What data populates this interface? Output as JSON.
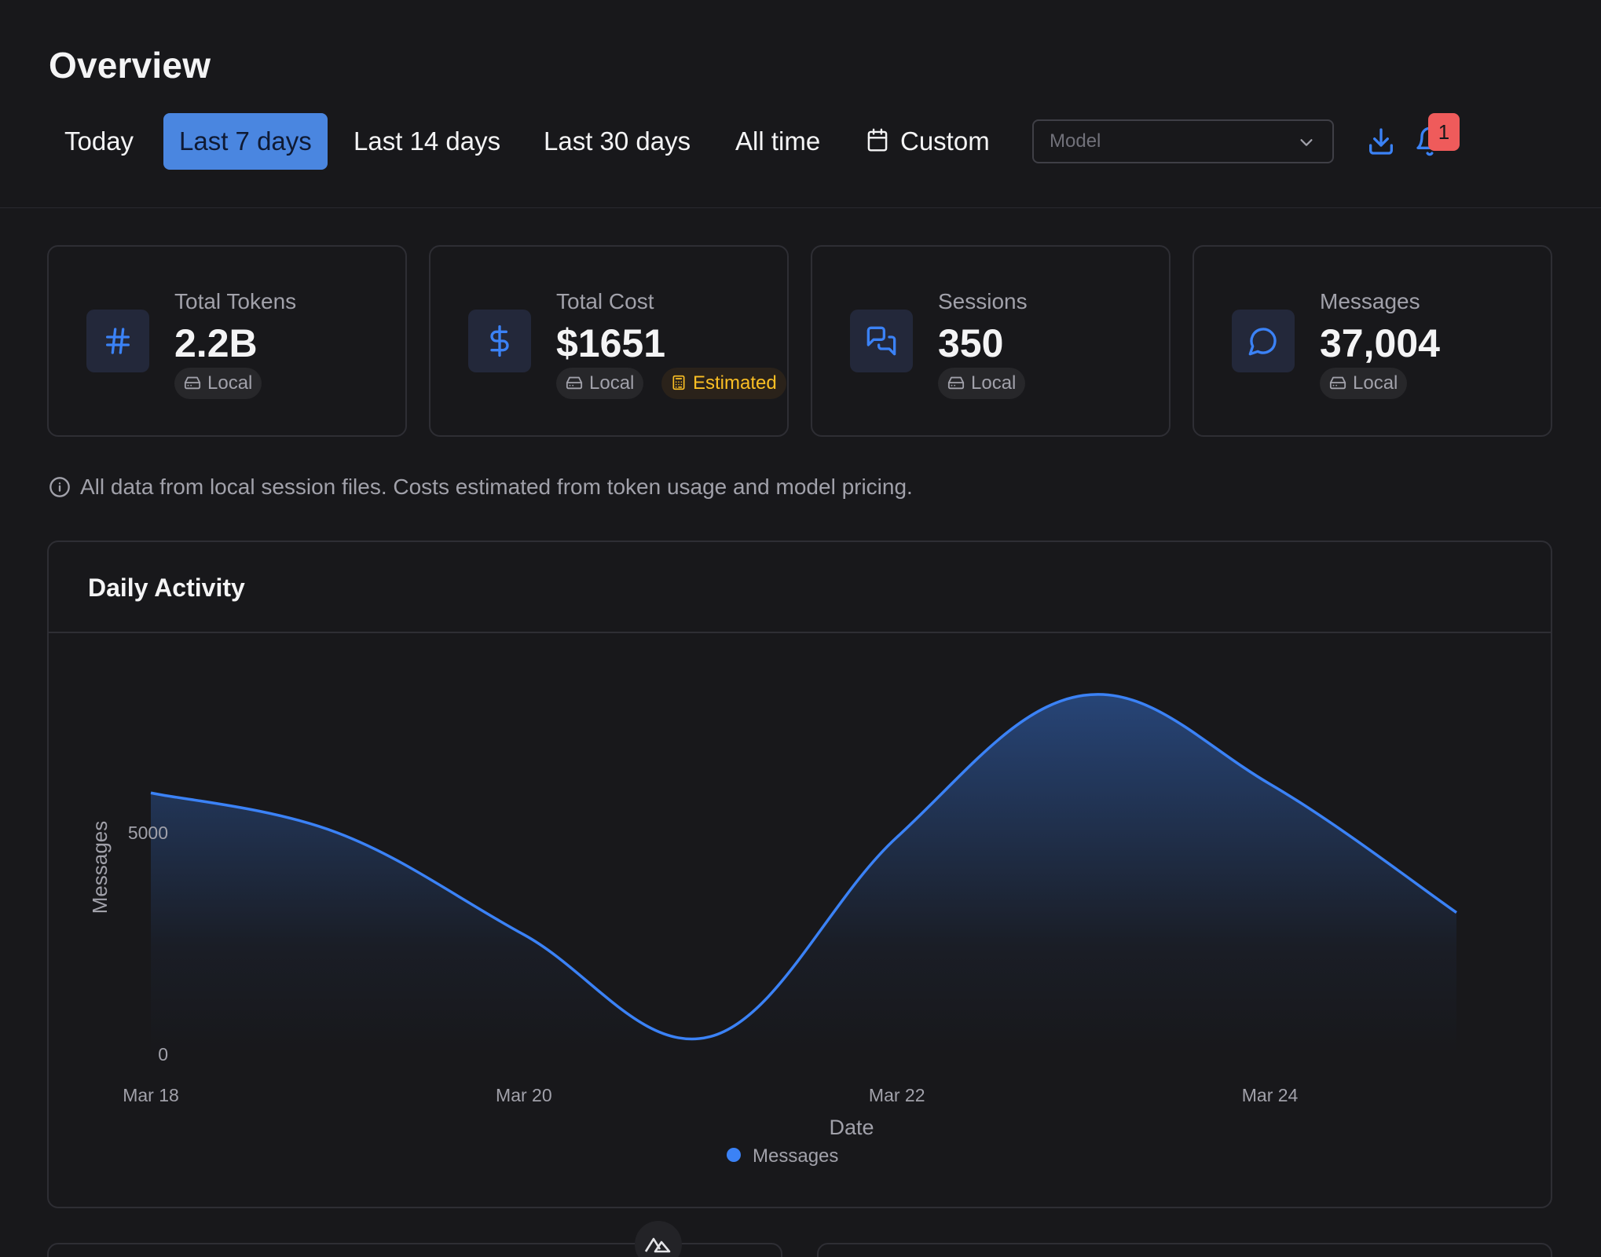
{
  "page": {
    "title": "Overview"
  },
  "range_tabs": [
    {
      "label": "Today",
      "active": false
    },
    {
      "label": "Last 7 days",
      "active": true
    },
    {
      "label": "Last 14 days",
      "active": false
    },
    {
      "label": "Last 30 days",
      "active": false
    },
    {
      "label": "All time",
      "active": false
    },
    {
      "label": "Custom",
      "active": false,
      "icon": "calendar-icon"
    }
  ],
  "filters": {
    "model_placeholder": "Model"
  },
  "header_actions": {
    "notification_count": "1"
  },
  "stats": [
    {
      "label": "Total Tokens",
      "value": "2.2B",
      "icon": "hash-icon",
      "badges": [
        "Local"
      ]
    },
    {
      "label": "Total Cost",
      "value": "$1651",
      "icon": "dollar-icon",
      "badges": [
        "Local",
        "Estimated"
      ]
    },
    {
      "label": "Sessions",
      "value": "350",
      "icon": "chat-bubbles-icon",
      "badges": [
        "Local"
      ]
    },
    {
      "label": "Messages",
      "value": "37,004",
      "icon": "message-circle-icon",
      "badges": [
        "Local"
      ]
    }
  ],
  "info_note": "All data from local session files. Costs estimated from token usage and model pricing.",
  "colors": {
    "accent": "#3b82f6",
    "estimated": "#fbbf24",
    "badge": "#ef5b5b",
    "background": "#18181b"
  },
  "chart_data": {
    "type": "area",
    "title": "Daily Activity",
    "xlabel": "Date",
    "ylabel": "Messages",
    "x": [
      "2025-03-18",
      "2025-03-19",
      "2025-03-20",
      "2025-03-21",
      "2025-03-22",
      "2025-03-23",
      "2025-03-24",
      "2025-03-25"
    ],
    "x_tick_labels": [
      "Mar 18",
      "Mar 20",
      "Mar 22",
      "Mar 24"
    ],
    "x_tick_values": [
      "2025-03-18",
      "2025-03-20",
      "2025-03-22",
      "2025-03-24"
    ],
    "y_ticks": [
      0,
      5000
    ],
    "ylim": [
      0,
      8500
    ],
    "series": [
      {
        "name": "Messages",
        "values": [
          5900,
          5000,
          2700,
          400,
          4900,
          8100,
          6100,
          3200
        ]
      }
    ],
    "legend": "bottom-center",
    "grid": false
  }
}
